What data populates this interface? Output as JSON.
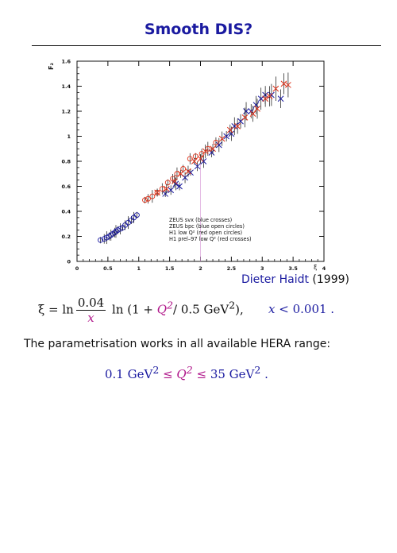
{
  "slide": {
    "title": "Smooth DIS?",
    "credit_name": "Dieter Haidt",
    "credit_year": "(1999)",
    "sentence": "The parametrisation works in all available HERA range:"
  },
  "equation1": {
    "lhs": "ξ = ln",
    "num": "0.04",
    "den": "x",
    "log": "ln",
    "paren_open": "(1 +",
    "q2": "Q",
    "exp": "2",
    "divisor": "/ 0.5 GeV",
    "paren_close": "),",
    "cond_var": "x",
    "cond_rest": "< 0.001 ."
  },
  "equation2": {
    "lower": "0.1 GeV",
    "le1": "≤",
    "q2": "Q",
    "le2": "≤",
    "upper": "35 GeV",
    "end": "."
  },
  "colors": {
    "title": "#1a1aa0",
    "blue": "#1a1aa0",
    "red": "#e0341c",
    "magenta": "#b0168a"
  },
  "chart_data": {
    "type": "scatter",
    "ylabel": "F₂",
    "xlabel": "ξ",
    "xlim": [
      0,
      4
    ],
    "ylim": [
      0,
      1.6
    ],
    "x_ticks": [
      "0",
      "0.5",
      "1",
      "1.5",
      "2",
      "2.5",
      "3",
      "3.5",
      "4"
    ],
    "y_ticks": [
      "0",
      "0.2",
      "0.4",
      "0.6",
      "0.8",
      "1",
      "1.2",
      "1.4",
      "1.6"
    ],
    "legend": [
      "ZEUS  svx (blue crosses)",
      "ZEUS  bpc (blue open circles)",
      "H1  low Q² (red open circles)",
      "H1  prel–97 low Q² (red crosses)"
    ],
    "legend_position": "bottom-right",
    "series": [
      {
        "marker": "circle",
        "color": "#1a1aa0",
        "points": [
          [
            0.38,
            0.17
          ],
          [
            0.44,
            0.18
          ],
          [
            0.48,
            0.19
          ],
          [
            0.52,
            0.2
          ],
          [
            0.55,
            0.21
          ],
          [
            0.58,
            0.22
          ],
          [
            0.61,
            0.23
          ],
          [
            0.63,
            0.24
          ],
          [
            0.66,
            0.25
          ],
          [
            0.7,
            0.26
          ],
          [
            0.74,
            0.27
          ],
          [
            0.78,
            0.29
          ],
          [
            0.83,
            0.31
          ],
          [
            0.88,
            0.33
          ],
          [
            0.92,
            0.35
          ],
          [
            0.97,
            0.37
          ]
        ]
      },
      {
        "marker": "cross",
        "color": "#1a1aa0",
        "points": [
          [
            1.43,
            0.54
          ],
          [
            1.52,
            0.57
          ],
          [
            1.6,
            0.62
          ],
          [
            1.66,
            0.6
          ],
          [
            1.75,
            0.67
          ],
          [
            1.84,
            0.71
          ],
          [
            1.95,
            0.76
          ],
          [
            2.05,
            0.8
          ],
          [
            2.18,
            0.87
          ],
          [
            2.3,
            0.93
          ],
          [
            2.42,
            1.0
          ],
          [
            2.5,
            1.02
          ],
          [
            2.55,
            1.08
          ],
          [
            2.65,
            1.12
          ],
          [
            2.74,
            1.2
          ],
          [
            2.82,
            1.2
          ],
          [
            2.9,
            1.25
          ],
          [
            2.98,
            1.3
          ],
          [
            3.05,
            1.33
          ],
          [
            3.15,
            1.33
          ],
          [
            3.3,
            1.3
          ]
        ]
      },
      {
        "marker": "circle",
        "color": "#e0341c",
        "points": [
          [
            1.1,
            0.49
          ],
          [
            1.15,
            0.5
          ],
          [
            1.22,
            0.52
          ],
          [
            1.3,
            0.55
          ],
          [
            1.38,
            0.58
          ],
          [
            1.47,
            0.63
          ],
          [
            1.55,
            0.66
          ],
          [
            1.62,
            0.7
          ],
          [
            1.72,
            0.74
          ],
          [
            1.83,
            0.82
          ],
          [
            1.92,
            0.84
          ],
          [
            2.02,
            0.86
          ],
          [
            2.12,
            0.9
          ],
          [
            2.25,
            0.95
          ]
        ]
      },
      {
        "marker": "cross",
        "color": "#e0341c",
        "points": [
          [
            1.3,
            0.55
          ],
          [
            1.45,
            0.58
          ],
          [
            1.58,
            0.64
          ],
          [
            1.68,
            0.7
          ],
          [
            1.8,
            0.72
          ],
          [
            1.9,
            0.8
          ],
          [
            2.0,
            0.82
          ],
          [
            2.08,
            0.88
          ],
          [
            2.2,
            0.9
          ],
          [
            2.35,
            0.98
          ],
          [
            2.48,
            1.05
          ],
          [
            2.6,
            1.08
          ],
          [
            2.72,
            1.15
          ],
          [
            2.85,
            1.18
          ],
          [
            2.92,
            1.22
          ],
          [
            3.05,
            1.3
          ],
          [
            3.12,
            1.32
          ],
          [
            3.22,
            1.38
          ],
          [
            3.35,
            1.42
          ],
          [
            3.42,
            1.41
          ]
        ]
      }
    ]
  }
}
